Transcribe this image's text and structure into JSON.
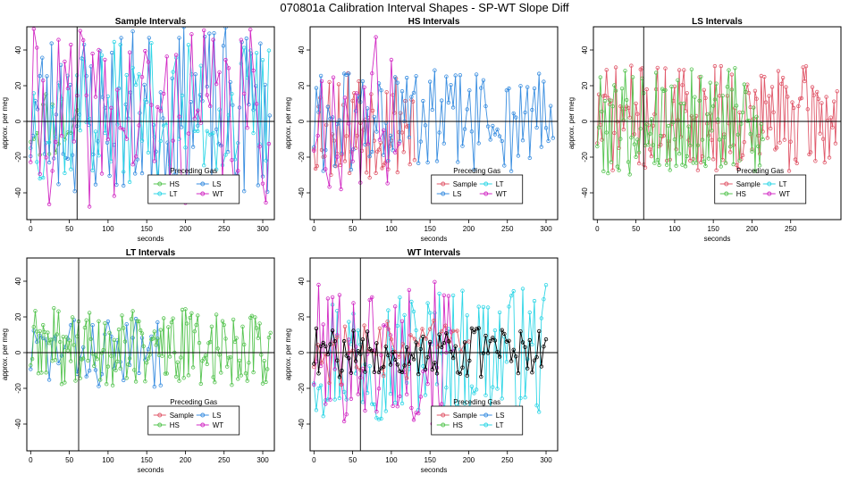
{
  "figure_title": "070801a   Calibration Interval Shapes - SP-WT Slope Diff",
  "colors": {
    "Sample": "#e0586a",
    "HS": "#56c451",
    "LS": "#3a8ee0",
    "LT": "#2fd6e6",
    "WT": "#d22bc4",
    "none": "#000000"
  },
  "chart_data": [
    {
      "type": "line",
      "title": "Sample Intervals",
      "xlabel": "seconds",
      "ylabel": "approx. per meg",
      "xlim": [
        -5,
        315
      ],
      "ylim": [
        -55,
        53
      ],
      "xticks": [
        0,
        50,
        100,
        150,
        200,
        250,
        300
      ],
      "yticks": [
        -40,
        -20,
        0,
        20,
        40
      ],
      "vline": 60,
      "hline": 0,
      "legend": {
        "title": "Preceding Gas",
        "position": "bottom-right",
        "items": [
          "HS",
          "LS",
          "LT",
          "WT"
        ]
      },
      "series": [
        {
          "name": "HS",
          "xmax": 60,
          "step": 4,
          "mean": 0,
          "amp": 22,
          "seed": 11
        },
        {
          "name": "LS",
          "xmax": 310,
          "step": 3,
          "mean": 5,
          "amp": 48,
          "seed": 23
        },
        {
          "name": "LT",
          "xmax": 310,
          "step": 4,
          "mean": 5,
          "amp": 40,
          "seed": 37
        },
        {
          "name": "WT",
          "xmax": 310,
          "step": 4,
          "mean": 2,
          "amp": 50,
          "seed": 41
        }
      ]
    },
    {
      "type": "line",
      "title": "HS Intervals",
      "xlabel": "seconds",
      "ylabel": "approx. per meg",
      "xlim": [
        -5,
        315
      ],
      "ylim": [
        -55,
        53
      ],
      "xticks": [
        0,
        50,
        100,
        150,
        200,
        250,
        300
      ],
      "yticks": [
        -40,
        -20,
        0,
        20,
        40
      ],
      "vline": 60,
      "hline": 0,
      "legend": {
        "title": "Preceding Gas",
        "position": "bottom-right",
        "items": [
          "Sample",
          "LT",
          "LS",
          "WT"
        ]
      },
      "series": [
        {
          "name": "Sample",
          "xmax": 130,
          "step": 2,
          "mean": 0,
          "amp": 32,
          "seed": 53
        },
        {
          "name": "LS",
          "xmax": 310,
          "step": 3,
          "mean": 0,
          "amp": 30,
          "seed": 61
        },
        {
          "name": "WT",
          "xmax": 110,
          "step": 5,
          "mean": 5,
          "amp": 45,
          "seed": 67
        }
      ]
    },
    {
      "type": "line",
      "title": "LS Intervals",
      "xlabel": "seconds",
      "ylabel": "approx. per meg",
      "xlim": [
        -5,
        315
      ],
      "ylim": [
        -55,
        53
      ],
      "xticks": [
        0,
        50,
        100,
        150,
        200,
        250
      ],
      "yticks": [
        -40,
        -20,
        0,
        20,
        40
      ],
      "vline": 60,
      "hline": 0,
      "legend": {
        "title": "Preceding Gas",
        "position": "bottom-right",
        "items": [
          "Sample",
          "LT",
          "HS",
          "WT"
        ]
      },
      "series": [
        {
          "name": "Sample",
          "xmax": 310,
          "step": 2,
          "mean": 2,
          "amp": 30,
          "seed": 71
        },
        {
          "name": "HS",
          "xmax": 215,
          "step": 2,
          "mean": 0,
          "amp": 30,
          "seed": 79
        }
      ]
    },
    {
      "type": "line",
      "title": "LT Intervals",
      "xlabel": "seconds",
      "ylabel": "approx. per meg",
      "xlim": [
        -5,
        315
      ],
      "ylim": [
        -55,
        53
      ],
      "xticks": [
        0,
        50,
        100,
        150,
        200,
        250,
        300
      ],
      "yticks": [
        -40,
        -20,
        0,
        20,
        40
      ],
      "vline": 62,
      "hline": 0,
      "legend": {
        "title": "Preceding Gas",
        "position": "bottom-right",
        "items": [
          "Sample",
          "LS",
          "HS",
          "WT"
        ]
      },
      "series": [
        {
          "name": "LS",
          "xmax": 170,
          "step": 4,
          "mean": 0,
          "amp": 20,
          "seed": 83
        },
        {
          "name": "HS",
          "xmax": 310,
          "step": 2,
          "mean": 3,
          "amp": 22,
          "seed": 89
        }
      ]
    },
    {
      "type": "line",
      "title": "WT Intervals",
      "xlabel": "seconds",
      "ylabel": "approx. per meg",
      "xlim": [
        -5,
        315
      ],
      "ylim": [
        -55,
        53
      ],
      "xticks": [
        0,
        50,
        100,
        150,
        200,
        250,
        300
      ],
      "yticks": [
        -40,
        -20,
        0,
        20,
        40
      ],
      "vline": 60,
      "hline": 0,
      "legend": {
        "title": "Preceding Gas",
        "position": "bottom-right",
        "items": [
          "Sample",
          "LS",
          "HS",
          "LT"
        ]
      },
      "series": [
        {
          "name": "LT",
          "xmax": 300,
          "step": 3,
          "mean": 0,
          "amp": 38,
          "seed": 97
        },
        {
          "name": "WT",
          "xmax": 180,
          "step": 3,
          "mean": 0,
          "amp": 40,
          "seed": 101
        },
        {
          "name": "Sample",
          "xmax": 200,
          "step": 5,
          "mean": 0,
          "amp": 18,
          "seed": 103
        },
        {
          "name": "none",
          "xmax": 300,
          "step": 3,
          "mean": 0,
          "amp": 14,
          "seed": 107
        }
      ]
    }
  ]
}
